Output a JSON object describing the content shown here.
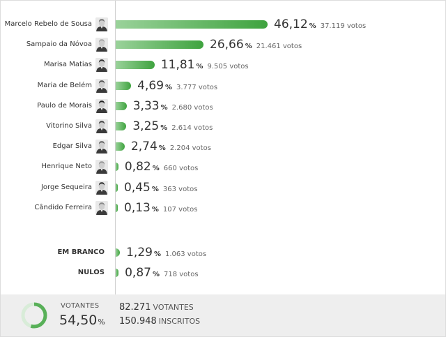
{
  "colors": {
    "bar_start": "#9ad29a",
    "bar_end": "#3fa33f",
    "ring_track": "#d8ecd8",
    "ring_fill": "#58b058"
  },
  "chart_data": {
    "type": "bar",
    "orientation": "horizontal",
    "categories": [
      "Marcelo Rebelo de Sousa",
      "Sampaio da Nóvoa",
      "Marisa Matias",
      "Maria de Belém",
      "Paulo de Morais",
      "Vitorino Silva",
      "Edgar Silva",
      "Henrique Neto",
      "Jorge Sequeira",
      "Cândido Ferreira"
    ],
    "values": [
      46.12,
      26.66,
      11.81,
      4.69,
      3.33,
      3.25,
      2.74,
      0.82,
      0.45,
      0.13
    ],
    "value_labels": [
      "46,12",
      "26,66",
      "11,81",
      "4,69",
      "3,33",
      "3,25",
      "2,74",
      "0,82",
      "0,45",
      "0,13"
    ],
    "votes_labels": [
      "37.119 votos",
      "21.461 votos",
      "9.505 votos",
      "3.777 votos",
      "2.680 votos",
      "2.614 votos",
      "2.204 votos",
      "660 votos",
      "363 votos",
      "107 votos"
    ],
    "votes": [
      37119,
      21461,
      9505,
      3777,
      2680,
      2614,
      2204,
      660,
      363,
      107
    ],
    "percent_sign": "%",
    "extra_rows": [
      {
        "label": "EM BRANCO",
        "value": 1.29,
        "value_label": "1,29",
        "votes": 1063,
        "votes_label": "1.063 votos"
      },
      {
        "label": "NULOS",
        "value": 0.87,
        "value_label": "0,87",
        "votes": 718,
        "votes_label": "718 votos"
      }
    ]
  },
  "footer": {
    "turnout_label": "VOTANTES",
    "turnout_value": "54,50",
    "turnout_fraction": 0.545,
    "percent_sign": "%",
    "voters_value": "82.271",
    "voters_label": "VOTANTES",
    "registered_value": "150.948",
    "registered_label": "INSCRITOS"
  }
}
